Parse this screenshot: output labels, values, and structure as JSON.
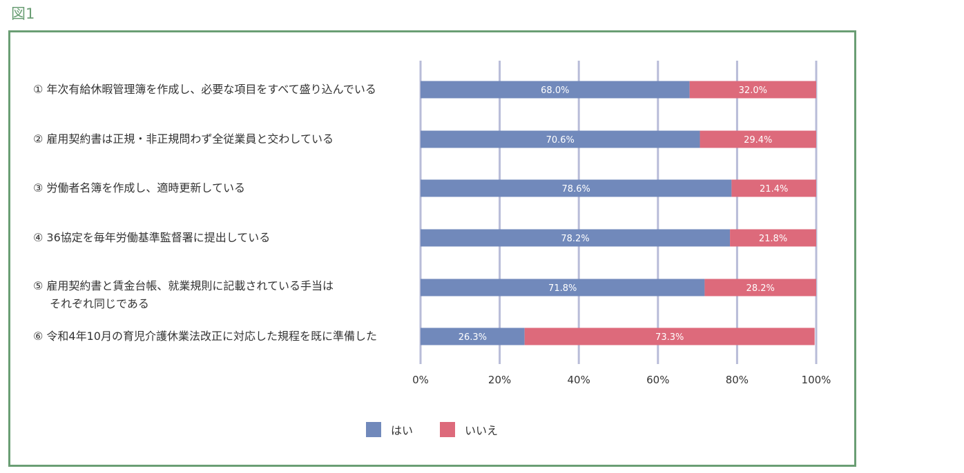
{
  "figure_label": "図1",
  "chart_data": {
    "type": "bar",
    "orientation": "horizontal",
    "stacked": true,
    "categories": [
      "① 年次有給休暇管理簿を作成し、必要な項目をすべて盛り込んでいる",
      "② 雇用契約書は正規・非正規問わず全従業員と交わしている",
      "③ 労働者名簿を作成し、適時更新している",
      "④ 36協定を毎年労働基準監督署に提出している",
      "⑤ 雇用契約書と賃金台帳、就業規則に記載されている手当は\nそれぞれ同じである",
      "⑥ 令和4年10月の育児介護休業法改正に対応した規程を既に準備した"
    ],
    "series": [
      {
        "name": "はい",
        "color": "#7189bb",
        "values": [
          68.0,
          70.6,
          78.6,
          78.2,
          71.8,
          26.3
        ],
        "labels": [
          "68.0%",
          "70.6%",
          "78.6%",
          "78.2%",
          "71.8%",
          "26.3%"
        ]
      },
      {
        "name": "いいえ",
        "color": "#dd6a7b",
        "values": [
          32.0,
          29.4,
          21.4,
          21.8,
          28.2,
          73.3
        ],
        "labels": [
          "32.0%",
          "29.4%",
          "21.4%",
          "21.8%",
          "28.2%",
          "73.3%"
        ]
      }
    ],
    "xlim": [
      0,
      100
    ],
    "xticks": [
      "0%",
      "20%",
      "40%",
      "60%",
      "80%",
      "100%"
    ],
    "grid": true,
    "grid_color": "#b8bcd8",
    "legend_position": "bottom-center"
  }
}
